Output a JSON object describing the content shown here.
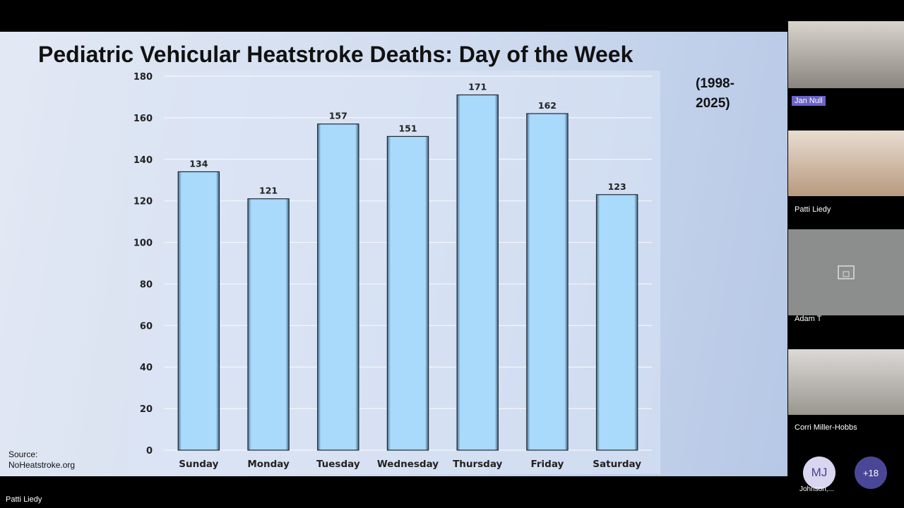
{
  "chart_data": {
    "type": "bar",
    "title": "Pediatric Vehicular Heatstroke Deaths: Day of the Week",
    "subtitle": "(1998-2025)",
    "source": "Source: NoHeatstroke.org",
    "categories": [
      "Sunday",
      "Monday",
      "Tuesday",
      "Wednesday",
      "Thursday",
      "Friday",
      "Saturday"
    ],
    "values": [
      134,
      121,
      157,
      151,
      171,
      162,
      123
    ],
    "color": "#a9d9fb",
    "ylim": [
      0,
      180
    ],
    "yticks": [
      0,
      20,
      40,
      60,
      80,
      100,
      120,
      140,
      160,
      180
    ],
    "grid": true
  },
  "participants": [
    {
      "name": "Jan Null"
    },
    {
      "name": "Patti Liedy"
    },
    {
      "name": "Adam T"
    },
    {
      "name": "Corri Miller-Hobbs"
    }
  ],
  "overflow": {
    "initials": "MJ",
    "name": "Johnson,...",
    "more": "+18"
  },
  "presenter": "Patti Liedy"
}
